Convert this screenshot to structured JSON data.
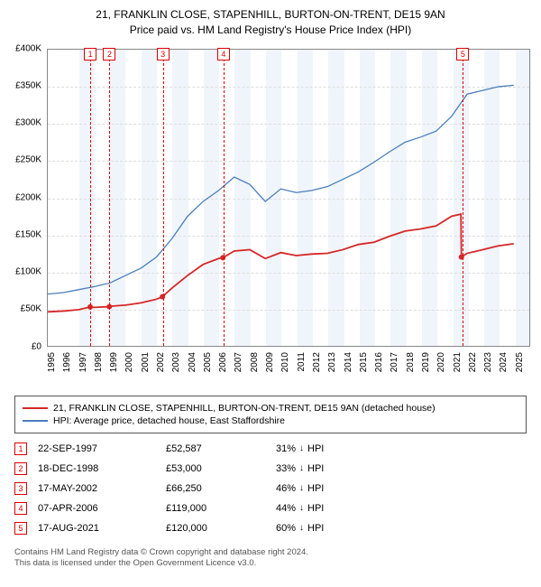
{
  "title": {
    "line1": "21, FRANKLIN CLOSE, STAPENHILL, BURTON-ON-TRENT, DE15 9AN",
    "line2": "Price paid vs. HM Land Registry's House Price Index (HPI)"
  },
  "chart": {
    "type": "line",
    "background_color": "#ffffff",
    "grid_color": "#dddddd",
    "axis_color": "#888888",
    "xlim": [
      1995,
      2026
    ],
    "ylim": [
      0,
      400000
    ],
    "ytick_step": 50000,
    "y_ticks": [
      {
        "v": 0,
        "label": "£0"
      },
      {
        "v": 50000,
        "label": "£50K"
      },
      {
        "v": 100000,
        "label": "£100K"
      },
      {
        "v": 150000,
        "label": "£150K"
      },
      {
        "v": 200000,
        "label": "£200K"
      },
      {
        "v": 250000,
        "label": "£250K"
      },
      {
        "v": 300000,
        "label": "£300K"
      },
      {
        "v": 350000,
        "label": "£350K"
      },
      {
        "v": 400000,
        "label": "£400K"
      }
    ],
    "x_ticks": [
      1995,
      1996,
      1997,
      1998,
      1999,
      2000,
      2001,
      2002,
      2003,
      2004,
      2005,
      2006,
      2007,
      2008,
      2009,
      2010,
      2011,
      2012,
      2013,
      2014,
      2015,
      2016,
      2017,
      2018,
      2019,
      2020,
      2021,
      2022,
      2023,
      2024,
      2025
    ],
    "band_color": "rgba(70,130,200,0.08)",
    "bands": [
      [
        1997,
        1998
      ],
      [
        1999,
        2000
      ],
      [
        2001,
        2002
      ],
      [
        2003,
        2004
      ],
      [
        2005,
        2006
      ],
      [
        2007,
        2008
      ],
      [
        2009,
        2010
      ],
      [
        2011,
        2012
      ],
      [
        2013,
        2014
      ],
      [
        2015,
        2016
      ],
      [
        2017,
        2018
      ],
      [
        2019,
        2020
      ],
      [
        2021,
        2022
      ],
      [
        2023,
        2024
      ],
      [
        2025,
        2026
      ]
    ],
    "markers": [
      {
        "n": 1,
        "year": 1997.73
      },
      {
        "n": 2,
        "year": 1998.96
      },
      {
        "n": 3,
        "year": 2002.38
      },
      {
        "n": 4,
        "year": 2006.27
      },
      {
        "n": 5,
        "year": 2021.63
      }
    ],
    "marker_line_color": "#d00000",
    "series": [
      {
        "name": "property",
        "color": "#d62728",
        "width": 1.8,
        "points": [
          [
            1995,
            46000
          ],
          [
            1996,
            47000
          ],
          [
            1997,
            49000
          ],
          [
            1997.73,
            52587
          ],
          [
            1998,
            52000
          ],
          [
            1998.96,
            53000
          ],
          [
            1999,
            53500
          ],
          [
            2000,
            55000
          ],
          [
            2001,
            58000
          ],
          [
            2002,
            63000
          ],
          [
            2002.38,
            66250
          ],
          [
            2003,
            78000
          ],
          [
            2004,
            95000
          ],
          [
            2005,
            110000
          ],
          [
            2006,
            118000
          ],
          [
            2006.27,
            119000
          ],
          [
            2007,
            128000
          ],
          [
            2008,
            130000
          ],
          [
            2009,
            118000
          ],
          [
            2010,
            126000
          ],
          [
            2011,
            122000
          ],
          [
            2012,
            124000
          ],
          [
            2013,
            125000
          ],
          [
            2014,
            130000
          ],
          [
            2015,
            137000
          ],
          [
            2016,
            140000
          ],
          [
            2017,
            148000
          ],
          [
            2018,
            155000
          ],
          [
            2019,
            158000
          ],
          [
            2020,
            162000
          ],
          [
            2021,
            175000
          ],
          [
            2021.6,
            178000
          ],
          [
            2021.63,
            120000
          ],
          [
            2022,
            125000
          ],
          [
            2023,
            130000
          ],
          [
            2024,
            135000
          ],
          [
            2025,
            138000
          ]
        ],
        "sale_markers": [
          [
            1997.73,
            52587
          ],
          [
            1998.96,
            53000
          ],
          [
            2002.38,
            66250
          ],
          [
            2006.27,
            119000
          ],
          [
            2021.63,
            120000
          ]
        ]
      },
      {
        "name": "hpi",
        "color": "#4a7ebb",
        "width": 1.3,
        "points": [
          [
            1995,
            70000
          ],
          [
            1996,
            72000
          ],
          [
            1997,
            76000
          ],
          [
            1998,
            80000
          ],
          [
            1999,
            85000
          ],
          [
            2000,
            95000
          ],
          [
            2001,
            105000
          ],
          [
            2002,
            120000
          ],
          [
            2003,
            145000
          ],
          [
            2004,
            175000
          ],
          [
            2005,
            195000
          ],
          [
            2006,
            210000
          ],
          [
            2007,
            228000
          ],
          [
            2008,
            218000
          ],
          [
            2009,
            195000
          ],
          [
            2010,
            212000
          ],
          [
            2011,
            207000
          ],
          [
            2012,
            210000
          ],
          [
            2013,
            215000
          ],
          [
            2014,
            225000
          ],
          [
            2015,
            235000
          ],
          [
            2016,
            248000
          ],
          [
            2017,
            262000
          ],
          [
            2018,
            275000
          ],
          [
            2019,
            282000
          ],
          [
            2020,
            290000
          ],
          [
            2021,
            310000
          ],
          [
            2022,
            340000
          ],
          [
            2023,
            345000
          ],
          [
            2024,
            350000
          ],
          [
            2025,
            352000
          ]
        ]
      }
    ]
  },
  "legend": {
    "items": [
      {
        "color": "#d62728",
        "label": "21, FRANKLIN CLOSE, STAPENHILL, BURTON-ON-TRENT, DE15 9AN (detached house)"
      },
      {
        "color": "#4a7ebb",
        "label": "HPI: Average price, detached house, East Staffordshire"
      }
    ]
  },
  "transactions": [
    {
      "n": 1,
      "date": "22-SEP-1997",
      "price": "£52,587",
      "diff": "31%",
      "dir": "down",
      "vs": "HPI"
    },
    {
      "n": 2,
      "date": "18-DEC-1998",
      "price": "£53,000",
      "diff": "33%",
      "dir": "down",
      "vs": "HPI"
    },
    {
      "n": 3,
      "date": "17-MAY-2002",
      "price": "£66,250",
      "diff": "46%",
      "dir": "down",
      "vs": "HPI"
    },
    {
      "n": 4,
      "date": "07-APR-2006",
      "price": "£119,000",
      "diff": "44%",
      "dir": "down",
      "vs": "HPI"
    },
    {
      "n": 5,
      "date": "17-AUG-2021",
      "price": "£120,000",
      "diff": "60%",
      "dir": "down",
      "vs": "HPI"
    }
  ],
  "footnote": {
    "line1": "Contains HM Land Registry data © Crown copyright and database right 2024.",
    "line2": "This data is licensed under the Open Government Licence v3.0."
  }
}
